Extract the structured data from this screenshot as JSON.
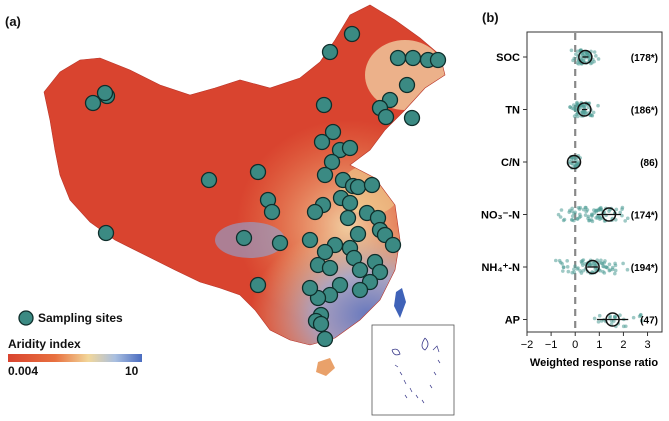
{
  "panel_a": {
    "label": "(a)",
    "legend": {
      "sampling_label": "Sampling sites",
      "aridity_title": "Aridity index",
      "aridity_min": "0.004",
      "aridity_max": "10"
    },
    "colors": {
      "arid": "#d9442f",
      "mid": "#f2d79a",
      "humid": "#4a6cc0",
      "site_fill": "#3b8a83",
      "site_stroke": "#0f2e2b"
    }
  },
  "panel_b": {
    "label": "(b)",
    "xlabel": "Weighted response ratio"
  },
  "chart_data": {
    "type": "scatter",
    "xlabel": "Weighted response ratio",
    "xlim": [
      -2,
      3.6
    ],
    "xticks": [
      "−2",
      "−1",
      "0",
      "1",
      "2",
      "3"
    ],
    "xtick_values": [
      -2,
      -1,
      0,
      1,
      2,
      3
    ],
    "reference_line": 0,
    "series": [
      {
        "name": "SOC",
        "mean": 0.42,
        "ci": [
          0.3,
          0.55
        ],
        "annotation": "(178*)",
        "spread": [
          -0.3,
          1.2
        ],
        "n_points": 60
      },
      {
        "name": "TN",
        "mean": 0.38,
        "ci": [
          0.28,
          0.5
        ],
        "annotation": "(186*)",
        "spread": [
          -0.4,
          1.1
        ],
        "n_points": 60
      },
      {
        "name": "C/N",
        "mean": -0.05,
        "ci": [
          -0.15,
          0.05
        ],
        "annotation": "(86)",
        "spread": [
          -0.35,
          0.3
        ],
        "n_points": 30
      },
      {
        "name": "NO₃⁻-N",
        "mean": 1.4,
        "ci": [
          0.9,
          1.9
        ],
        "annotation": "(174*)",
        "spread": [
          -1.3,
          2.8
        ],
        "n_points": 80
      },
      {
        "name": "NH₄⁺-N",
        "mean": 0.72,
        "ci": [
          0.5,
          0.95
        ],
        "annotation": "(194*)",
        "spread": [
          -1.1,
          2.6
        ],
        "n_points": 80
      },
      {
        "name": "AP",
        "mean": 1.55,
        "ci": [
          0.9,
          2.2
        ],
        "annotation": "(47)",
        "spread": [
          0.4,
          3.3
        ],
        "n_points": 25
      }
    ]
  }
}
